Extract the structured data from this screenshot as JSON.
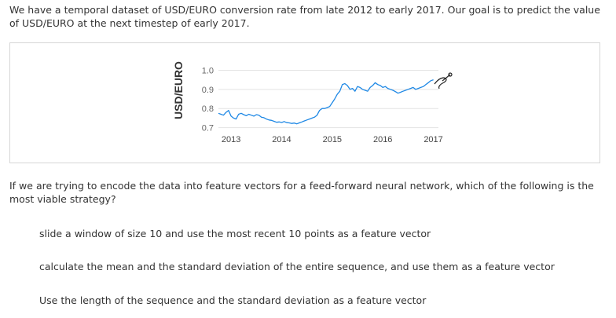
{
  "intro_text": "We have a temporal dataset of USD/EURO conversion rate from late 2012 to early 2017. Our goal is to predict the value of USD/EURO at the next timestep of early 2017.",
  "question_text": "If we are trying to encode the data into feature vectors for a feed-forward neural network, which of the following is the most viable strategy?",
  "options": [
    "slide a window of size 10 and use the most recent 10 points as a feature vector",
    "calculate the mean and the standard deviation of the entire sequence, and use them as a feature vector",
    "Use the length of the sequence and the standard deviation as a feature vector"
  ],
  "chart_data": {
    "type": "line",
    "ylabel": "USD/EURO",
    "xlabel": "",
    "title": "",
    "y_ticks": [
      "1.0",
      "0.9",
      "0.8",
      "0.7"
    ],
    "y_tick_values": [
      1.0,
      0.9,
      0.8,
      0.7
    ],
    "x_ticks": [
      "2013",
      "2014",
      "2015",
      "2016",
      "2017"
    ],
    "x_tick_values": [
      2013,
      2014,
      2015,
      2016,
      2017
    ],
    "xlim": [
      2012.75,
      2017.1
    ],
    "ylim": [
      0.69,
      1.01
    ],
    "grid": true,
    "line_color": "#1e88e5",
    "series": [
      {
        "x": [
          2012.75,
          2012.8,
          2012.85,
          2012.9,
          2012.95,
          2013.0,
          2013.05,
          2013.1,
          2013.15,
          2013.2,
          2013.25,
          2013.3,
          2013.35,
          2013.4,
          2013.45,
          2013.5,
          2013.55,
          2013.6,
          2013.65,
          2013.7,
          2013.75,
          2013.8,
          2013.85,
          2013.9,
          2013.95,
          2014.0,
          2014.05,
          2014.1,
          2014.15,
          2014.2,
          2014.25,
          2014.3,
          2014.35,
          2014.4,
          2014.45,
          2014.5,
          2014.55,
          2014.6,
          2014.65,
          2014.7,
          2014.75,
          2014.8,
          2014.85,
          2014.9,
          2014.95,
          2015.0,
          2015.05,
          2015.1,
          2015.15,
          2015.2,
          2015.25,
          2015.3,
          2015.35,
          2015.4,
          2015.45,
          2015.5,
          2015.55,
          2015.6,
          2015.65,
          2015.7,
          2015.75,
          2015.8,
          2015.85,
          2015.9,
          2015.95,
          2016.0,
          2016.05,
          2016.1,
          2016.15,
          2016.2,
          2016.25,
          2016.3,
          2016.35,
          2016.4,
          2016.45,
          2016.5,
          2016.55,
          2016.6,
          2016.65,
          2016.7,
          2016.75,
          2016.8,
          2016.85,
          2016.9,
          2016.95,
          2017.0
        ],
        "y": [
          0.775,
          0.77,
          0.765,
          0.78,
          0.79,
          0.76,
          0.75,
          0.745,
          0.77,
          0.775,
          0.768,
          0.762,
          0.77,
          0.765,
          0.76,
          0.768,
          0.765,
          0.755,
          0.752,
          0.745,
          0.74,
          0.738,
          0.733,
          0.728,
          0.73,
          0.727,
          0.732,
          0.726,
          0.725,
          0.722,
          0.724,
          0.72,
          0.725,
          0.73,
          0.735,
          0.74,
          0.745,
          0.75,
          0.755,
          0.765,
          0.79,
          0.8,
          0.8,
          0.805,
          0.81,
          0.83,
          0.85,
          0.875,
          0.89,
          0.925,
          0.93,
          0.92,
          0.9,
          0.905,
          0.89,
          0.915,
          0.91,
          0.9,
          0.895,
          0.89,
          0.91,
          0.92,
          0.935,
          0.925,
          0.92,
          0.91,
          0.915,
          0.905,
          0.9,
          0.895,
          0.888,
          0.88,
          0.885,
          0.89,
          0.895,
          0.9,
          0.905,
          0.91,
          0.9,
          0.905,
          0.91,
          0.915,
          0.925,
          0.935,
          0.945,
          0.95
        ]
      }
    ]
  }
}
